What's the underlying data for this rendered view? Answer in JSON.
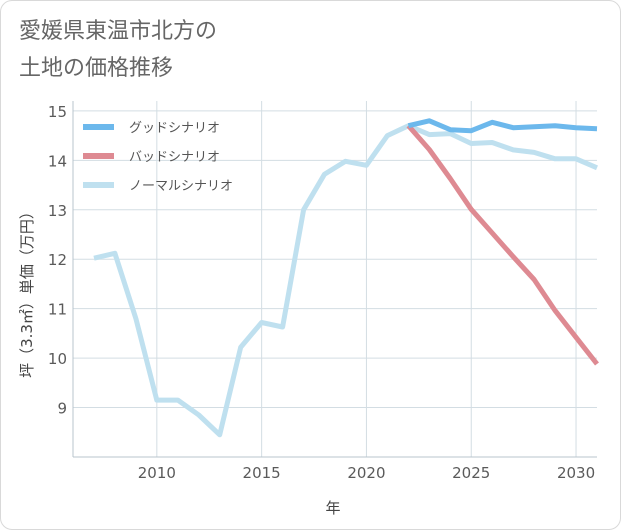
{
  "chart_data": {
    "type": "line",
    "title": [
      "愛媛県東温市北方の",
      "土地の価格推移"
    ],
    "xlabel": "年",
    "ylabel": "坪（3.3㎡）単価（万円）",
    "xlim": [
      2006,
      2031
    ],
    "ylim": [
      8,
      15.2
    ],
    "x_ticks": [
      2010,
      2015,
      2020,
      2025,
      2030
    ],
    "y_ticks": [
      9,
      10,
      11,
      12,
      13,
      14,
      15
    ],
    "legend_position": "top-left",
    "grid": true,
    "series": [
      {
        "name": "グッドシナリオ",
        "color": "#6cb8ec",
        "x": [
          2022,
          2023,
          2024,
          2025,
          2026,
          2027,
          2028,
          2029,
          2030,
          2031
        ],
        "values": [
          14.7,
          14.8,
          14.62,
          14.6,
          14.77,
          14.66,
          14.68,
          14.7,
          14.66,
          14.64
        ]
      },
      {
        "name": "バッドシナリオ",
        "color": "#de8a92",
        "x": [
          2022,
          2023,
          2024,
          2025,
          2026,
          2027,
          2028,
          2029,
          2030,
          2031
        ],
        "values": [
          14.7,
          14.22,
          13.63,
          13.01,
          12.53,
          12.05,
          11.59,
          10.96,
          10.42,
          9.88
        ]
      },
      {
        "name": "ノーマルシナリオ",
        "color": "#bfe0ef",
        "x": [
          2007,
          2008,
          2009,
          2010,
          2011,
          2012,
          2013,
          2014,
          2015,
          2016,
          2017,
          2018,
          2019,
          2020,
          2021,
          2022,
          2023,
          2024,
          2025,
          2026,
          2027,
          2028,
          2029,
          2030,
          2031
        ],
        "values": [
          12.02,
          12.12,
          10.8,
          9.15,
          9.15,
          8.85,
          8.45,
          10.22,
          10.72,
          10.63,
          13.0,
          13.72,
          13.98,
          13.9,
          14.5,
          14.7,
          14.52,
          14.54,
          14.34,
          14.36,
          14.21,
          14.16,
          14.03,
          14.03,
          13.85
        ]
      }
    ]
  }
}
